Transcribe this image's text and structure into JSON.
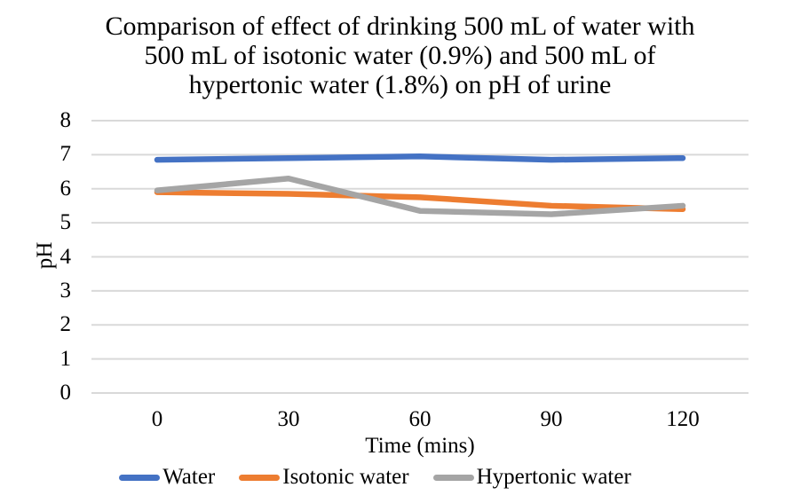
{
  "chart_data": {
    "type": "line",
    "title": "Comparison of effect of drinking 500 mL of water with 500 mL of isotonic water (0.9%) and 500 mL of hypertonic water (1.8%) on pH of urine",
    "title_lines": [
      "Comparison of effect of drinking 500 mL of water with",
      "500 mL of isotonic water (0.9%) and 500 mL of",
      "hypertonic water (1.8%) on pH of urine"
    ],
    "xlabel": "Time (mins)",
    "ylabel": "pH",
    "categories": [
      "0",
      "30",
      "60",
      "90",
      "120"
    ],
    "x": [
      0,
      30,
      60,
      90,
      120
    ],
    "yticks": [
      0,
      1,
      2,
      3,
      4,
      5,
      6,
      7,
      8
    ],
    "ylim": [
      0,
      8
    ],
    "grid": "horizontal",
    "legend_position": "bottom",
    "series": [
      {
        "name": "Water",
        "color": "#4472C4",
        "values": [
          6.85,
          6.9,
          6.95,
          6.85,
          6.9
        ]
      },
      {
        "name": "Isotonic water",
        "color": "#ED7D31",
        "values": [
          5.9,
          5.85,
          5.75,
          5.5,
          5.4
        ]
      },
      {
        "name": "Hypertonic water",
        "color": "#A5A5A5",
        "values": [
          5.95,
          6.3,
          5.35,
          5.25,
          5.5
        ]
      }
    ],
    "colors": {
      "gridline": "#D9D9D9",
      "axis_line": "#D9D9D9",
      "text": "#000000",
      "background": "#FFFFFF"
    }
  }
}
